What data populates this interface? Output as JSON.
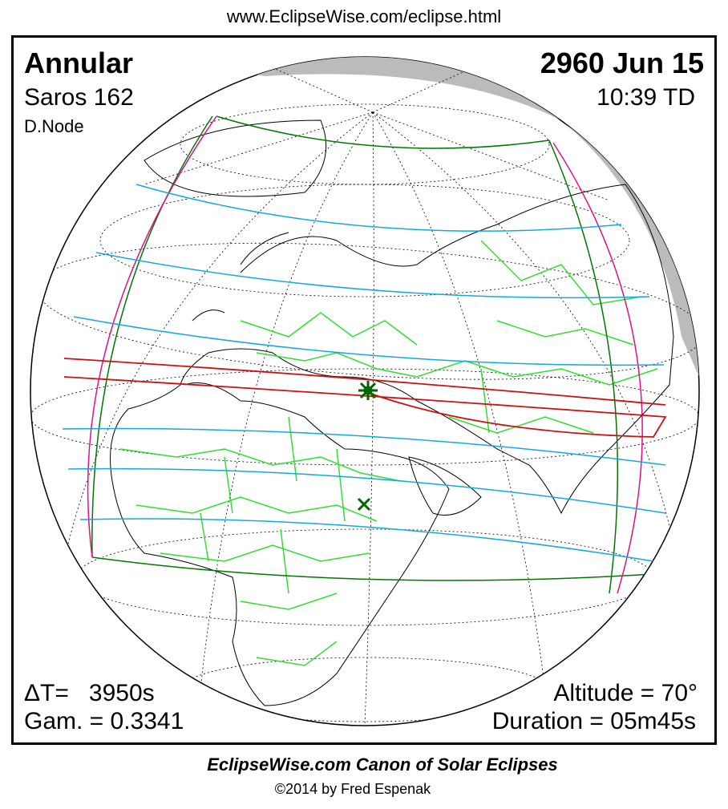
{
  "header": {
    "url": "www.EclipseWise.com/eclipse.html"
  },
  "eclipse": {
    "type": "Annular",
    "saros": "Saros 162",
    "node": "D.Node",
    "date": "2960 Jun 15",
    "time": "10:39 TD",
    "delta_t": "ΔT=   3950s",
    "gamma": "Gam. = 0.3341",
    "altitude": "Altitude = 70°",
    "duration": "Duration = 05m45s"
  },
  "footer": {
    "title": "EclipseWise.com Canon of Solar Eclipses",
    "copyright": "©2014 by Fred Espenak"
  }
}
